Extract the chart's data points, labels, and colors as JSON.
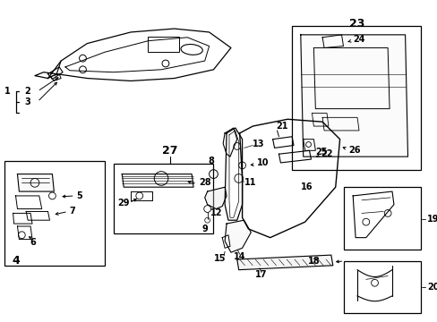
{
  "bg_color": "#ffffff",
  "fig_width": 4.89,
  "fig_height": 3.6,
  "dpi": 100,
  "lc": "#000000",
  "tc": "#000000",
  "fs": 7.0,
  "lfs": 9.0
}
